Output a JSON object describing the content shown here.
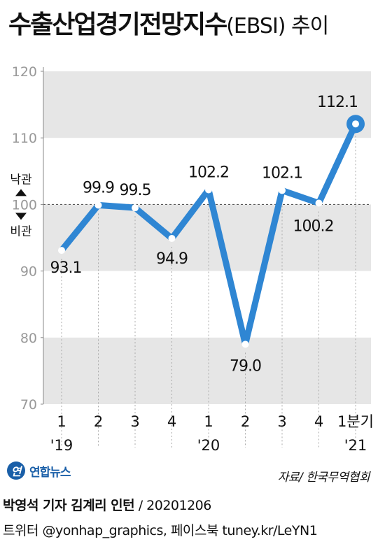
{
  "title": {
    "main": "수출산업경기전망지수",
    "paren": "(EBSI) 추이"
  },
  "chart_data": {
    "type": "line",
    "x_labels": [
      "1",
      "2",
      "3",
      "4",
      "1",
      "2",
      "3",
      "4",
      "1분기"
    ],
    "year_labels": [
      {
        "text": "'19",
        "index": 0
      },
      {
        "text": "'20",
        "index": 4
      },
      {
        "text": "'21",
        "index": 8
      }
    ],
    "values": [
      93.1,
      99.9,
      99.5,
      94.9,
      102.2,
      79.0,
      102.1,
      100.2,
      112.1
    ],
    "data_labels": [
      "93.1",
      "99.9",
      "99.5",
      "94.9",
      "102.2",
      "79.0",
      "102.1",
      "100.2",
      "112.1"
    ],
    "ylim": [
      70,
      120
    ],
    "yticks": [
      "70",
      "80",
      "90",
      "100",
      "110",
      "120"
    ],
    "reference_line": 100,
    "positive_label": "낙관",
    "negative_label": "비관",
    "line_color": "#2f86d3",
    "band_color": "#e6e6e6"
  },
  "footer": {
    "brand": "연합뉴스",
    "source": "자료/ 한국무역협회",
    "credit_names": "박영석 기자  김계리 인턴",
    "credit_date": " / 20201206",
    "social": "트위터 @yonhap_graphics, 페이스북 tuney.kr/LeYN1"
  }
}
